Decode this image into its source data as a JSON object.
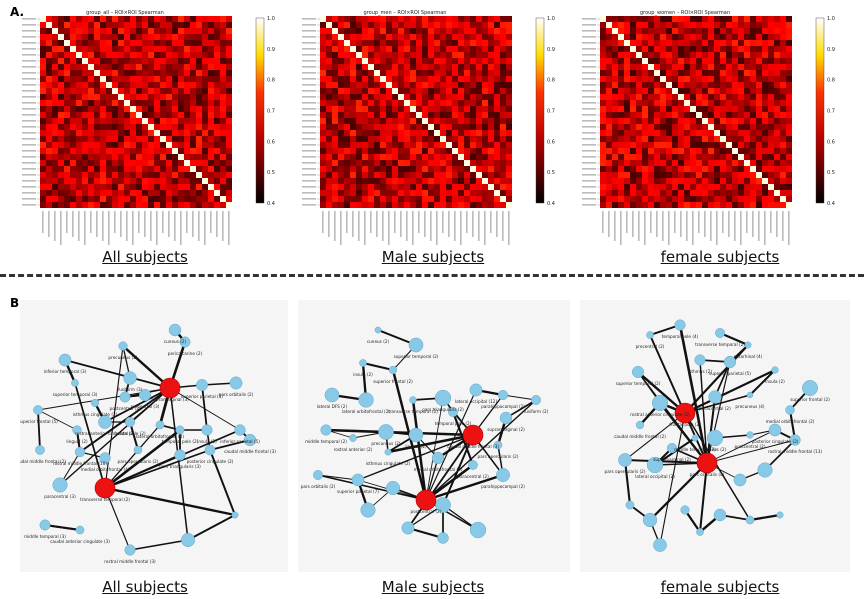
{
  "section_a_label": "A.",
  "section_b_label": "B.",
  "captions_top": [
    "All subjects",
    "Male subjects",
    "female subjects"
  ],
  "captions_bottom": [
    "All subjects",
    "Male subjects",
    "female subjects"
  ],
  "heatmaps": [
    {
      "title": "group_all – ROI×ROI Spearman"
    },
    {
      "title": "group_men – ROI×ROI Spearman"
    },
    {
      "title": "group_women – ROI×ROI Spearman"
    }
  ],
  "colorbar_ticks": [
    "1.0",
    "0.9",
    "0.8",
    "0.7",
    "0.6",
    "0.5",
    "0.4"
  ],
  "colors": {
    "hub_node": "#ee1111",
    "node": "#87c9e6",
    "edge": "#111111",
    "separator": "#333333"
  },
  "networks": [
    {
      "labels": [
        "supramarginal (3)",
        "transverse temporal (2)",
        "cuneus (2)",
        "pericalcarine (2)",
        "precuneus (2)",
        "inferior temporal (3)",
        "superior temporal (3)",
        "fusiform (3)",
        "postcentral (3)",
        "isthmus cingulate (2)",
        "precentral (3)",
        "superior parietal (3)",
        "pars orbitalis (2)",
        "superior frontal (5)",
        "rostral anterior cingulate (2)",
        "frontal pole (2)",
        "lateral orbitofrontal (4)",
        "temporal pole (2)",
        "insula (2)",
        "inferior parietal (5)",
        "lingual (2)",
        "caudal middle frontal (2)",
        "rostral middle frontal (10)",
        "medial orbitofrontal (4)",
        "pars opercularis (2)",
        "pars triangularis (3)",
        "posterior cingulate (2)",
        "caudal middle frontal (3)",
        "paracentral (3)",
        "middle temporal (3)",
        "caudal anterior cingulate (3)",
        "rostral middle frontal (3)"
      ]
    },
    {
      "labels": [
        "caudal middle frontal (3)",
        "postcentral (2)",
        "cuneus (2)",
        "superior temporal (2)",
        "insula (2)",
        "superior frontal (2)",
        "lateral DFS (2)",
        "lateral orbitofrontal (2)",
        "transverse temporal (2)",
        "pars triangularis (2)",
        "temporal pole (2)",
        "lateral occipital (12)",
        "supramarginal (2)",
        "fusiform (2)",
        "parahippocampal (2)",
        "middle temporal (2)",
        "rostral anterior (2)",
        "precuneus (2)",
        "lingual (2)",
        "isthmus cingulate (2)",
        "medial orbitofrontal (2)",
        "paracentral (2)",
        "pars opercularis (2)",
        "parahippocampal (2)",
        "pars orbitalis (2)",
        "superior parietal (7)"
      ]
    },
    {
      "labels": [
        "frontal pole (2)",
        "pars orbitalis (4)",
        "temporal pole (4)",
        "precentral (2)",
        "transverse temporal (2)",
        "entorhinal (4)",
        "superior temporal (2)",
        "isthmus (2)",
        "superior parietal (5)",
        "insula (2)",
        "superior frontal (2)",
        "rostral anterior cingulate (2)",
        "paracentral (2)",
        "precuneus (4)",
        "medial orbitofrontal (2)",
        "caudal middle frontal (2)",
        "supramarginal (2)",
        "middle temporal (2)",
        "cuneus (2)",
        "postcentral (2)",
        "posterior cingulate (2)",
        "rostral middle frontal (13)",
        "pars opercularis (2)",
        "lateral occipital (2)"
      ]
    }
  ]
}
